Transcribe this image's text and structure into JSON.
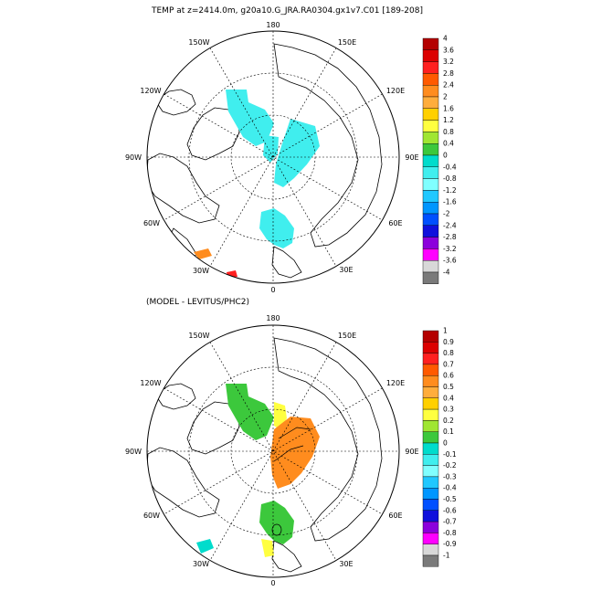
{
  "top_panel": {
    "title": "TEMP at z=2414.0m, g20a10.G_JRA.RA0304.gx1v7.C01 [189-208]",
    "longitude_labels": [
      "180",
      "150E",
      "120E",
      "90E",
      "60E",
      "30E",
      "0",
      "30W",
      "60W",
      "90W",
      "120W",
      "150W"
    ],
    "colorbar": {
      "labels": [
        "4",
        "3.6",
        "3.2",
        "2.8",
        "2.4",
        "2",
        "1.6",
        "1.2",
        "0.8",
        "0.4",
        "0",
        "-0.4",
        "-0.8",
        "-1.2",
        "-1.6",
        "-2",
        "-2.4",
        "-2.8",
        "-3.2",
        "-3.6",
        "-4"
      ],
      "colors": [
        "#b40000",
        "#dc0000",
        "#ff2020",
        "#ff5a00",
        "#ff8c1e",
        "#ffad3c",
        "#ffd000",
        "#ffff40",
        "#a0e632",
        "#3cc83c",
        "#00dccc",
        "#40eeee",
        "#80ffff",
        "#20c8ff",
        "#0096ff",
        "#0050ff",
        "#1010dc",
        "#8c00dc",
        "#ff00ff",
        "#d8d8d8",
        "#7a7a7a"
      ]
    }
  },
  "bottom_panel": {
    "title": "(MODEL - LEVITUS/PHC2)",
    "longitude_labels": [
      "180",
      "150E",
      "120E",
      "90E",
      "60E",
      "30E",
      "0",
      "30W",
      "60W",
      "90W",
      "120W",
      "150W"
    ],
    "colorbar": {
      "labels": [
        "1",
        "0.9",
        "0.8",
        "0.7",
        "0.6",
        "0.5",
        "0.4",
        "0.3",
        "0.2",
        "0.1",
        "0",
        "-0.1",
        "-0.2",
        "-0.3",
        "-0.4",
        "-0.5",
        "-0.6",
        "-0.7",
        "-0.8",
        "-0.9",
        "-1"
      ],
      "colors": [
        "#b40000",
        "#dc0000",
        "#ff2020",
        "#ff5a00",
        "#ff8c1e",
        "#ffad3c",
        "#ffd000",
        "#ffff40",
        "#a0e632",
        "#3cc83c",
        "#00dccc",
        "#40eeee",
        "#80ffff",
        "#20c8ff",
        "#0096ff",
        "#0050ff",
        "#1010dc",
        "#8c00dc",
        "#ff00ff",
        "#d8d8d8",
        "#7a7a7a"
      ]
    }
  }
}
